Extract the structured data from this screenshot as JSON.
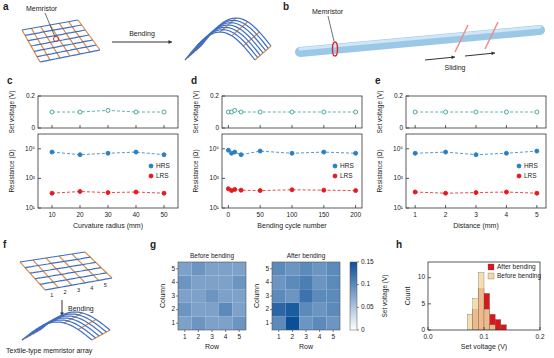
{
  "illustrations": [
    {
      "panel": "a",
      "labels": [
        "Memristor",
        "Bending"
      ]
    },
    {
      "panel": "b",
      "labels": [
        "Memristor",
        "Sliding"
      ]
    },
    {
      "panel": "f",
      "labels": [
        "Textile-type memristor array",
        "Bending"
      ],
      "numbers": [
        "1",
        "2",
        "3",
        "4",
        "5"
      ]
    }
  ],
  "chart_data": [
    {
      "panel": "c",
      "type": "line",
      "xlabel": "Curvature radius (mm)",
      "x": [
        10,
        20,
        30,
        40,
        50
      ],
      "xlim": [
        5,
        55
      ],
      "xticks": [
        10,
        20,
        30,
        40,
        50
      ],
      "subplots": [
        {
          "ylabel": "Set voltage (V)",
          "ylim": [
            0,
            0.2
          ],
          "yticks": [
            0,
            0.2
          ],
          "series": [
            {
              "color": "#3a9e9a",
              "marker": "open-circle",
              "line_style": "dashed",
              "values": [
                0.1,
                0.1,
                0.11,
                0.1,
                0.1
              ]
            }
          ]
        },
        {
          "ylabel": "Resistance (Ω)",
          "log": "y",
          "ylim": [
            10,
            1000000
          ],
          "yticks": [
            {
              "value": 10,
              "label": "10¹"
            },
            {
              "value": 1000,
              "label": "10³"
            },
            {
              "value": 100000,
              "label": "10⁵"
            }
          ],
          "legend": "right",
          "series": [
            {
              "name": "HRS",
              "color": "#2a7fc1",
              "marker": "circle",
              "line_style": "dashed",
              "values": [
                60000,
                40000,
                50000,
                60000,
                40000
              ]
            },
            {
              "name": "LRS",
              "color": "#e41a1c",
              "marker": "circle",
              "line_style": "dashed",
              "values": [
                100,
                130,
                110,
                120,
                100
              ]
            }
          ]
        }
      ]
    },
    {
      "panel": "d",
      "type": "line",
      "xlabel": "Bending cycle number",
      "x": [
        0,
        5,
        10,
        20,
        50,
        100,
        150,
        200
      ],
      "xlim": [
        -10,
        210
      ],
      "xticks": [
        0,
        50,
        100,
        150,
        200
      ],
      "subplots": [
        {
          "ylabel": "Set voltage (V)",
          "ylim": [
            0,
            0.2
          ],
          "yticks": [
            0,
            0.2
          ],
          "series": [
            {
              "color": "#3a9e9a",
              "marker": "open-circle",
              "line_style": "dashed",
              "values": [
                0.1,
                0.1,
                0.11,
                0.1,
                0.1,
                0.1,
                0.1,
                0.1
              ]
            }
          ]
        },
        {
          "ylabel": "Resistance (Ω)",
          "log": "y",
          "ylim": [
            10,
            1000000
          ],
          "yticks": [
            {
              "value": 10,
              "label": "10¹"
            },
            {
              "value": 1000,
              "label": "10³"
            },
            {
              "value": 100000,
              "label": "10⁵"
            }
          ],
          "legend": "right",
          "series": [
            {
              "name": "HRS",
              "color": "#2a7fc1",
              "marker": "circle",
              "line_style": "dashed",
              "values": [
                80000,
                50000,
                60000,
                40000,
                70000,
                50000,
                60000,
                50000
              ]
            },
            {
              "name": "LRS",
              "color": "#e41a1c",
              "marker": "circle",
              "line_style": "dashed",
              "values": [
                200,
                150,
                180,
                160,
                150,
                170,
                160,
                150
              ]
            }
          ]
        }
      ]
    },
    {
      "panel": "e",
      "type": "line",
      "xlabel": "Distance (mm)",
      "x": [
        1,
        2,
        3,
        4,
        5
      ],
      "xlim": [
        0.7,
        5.3
      ],
      "xticks": [
        1,
        2,
        3,
        4,
        5
      ],
      "subplots": [
        {
          "ylabel": "Set voltage (V)",
          "ylim": [
            0,
            0.2
          ],
          "yticks": [
            0,
            0.2
          ],
          "series": [
            {
              "color": "#3a9e9a",
              "marker": "open-circle",
              "line_style": "dashed",
              "values": [
                0.1,
                0.1,
                0.1,
                0.1,
                0.1
              ]
            }
          ]
        },
        {
          "ylabel": "Resistance (Ω)",
          "log": "y",
          "ylim": [
            10,
            1000000
          ],
          "yticks": [
            {
              "value": 10,
              "label": "10¹"
            },
            {
              "value": 1000,
              "label": "10³"
            },
            {
              "value": 100000,
              "label": "10⁵"
            }
          ],
          "legend": "right",
          "series": [
            {
              "name": "HRS",
              "color": "#2a7fc1",
              "marker": "circle",
              "line_style": "dashed",
              "values": [
                50000,
                60000,
                40000,
                50000,
                70000
              ]
            },
            {
              "name": "LRS",
              "color": "#e41a1c",
              "marker": "circle",
              "line_style": "dashed",
              "values": [
                120,
                100,
                110,
                120,
                100
              ]
            }
          ]
        }
      ]
    },
    {
      "panel": "g",
      "type": "heatmap",
      "xlabel": "Row",
      "ylabel": "Column",
      "xticks": [
        1,
        2,
        3,
        4,
        5
      ],
      "yticks": [
        1,
        2,
        3,
        4,
        5
      ],
      "panels": [
        {
          "title": "Before bending",
          "cells": [
            [
              0.08,
              0.09,
              0.08,
              0.08,
              0.09
            ],
            [
              0.09,
              0.08,
              0.08,
              0.1,
              0.08
            ],
            [
              0.08,
              0.08,
              0.09,
              0.08,
              0.08
            ],
            [
              0.09,
              0.08,
              0.08,
              0.08,
              0.09
            ],
            [
              0.08,
              0.09,
              0.08,
              0.08,
              0.08
            ]
          ]
        },
        {
          "title": "After bending",
          "cells": [
            [
              0.1,
              0.15,
              0.09,
              0.1,
              0.09
            ],
            [
              0.13,
              0.14,
              0.1,
              0.09,
              0.1
            ],
            [
              0.1,
              0.09,
              0.12,
              0.1,
              0.1
            ],
            [
              0.09,
              0.1,
              0.11,
              0.09,
              0.1
            ],
            [
              0.1,
              0.09,
              0.1,
              0.09,
              0.1
            ]
          ]
        }
      ],
      "colorbar": {
        "label": "Set voltage (V)",
        "range": [
          0,
          0.15
        ],
        "ticks": [
          0,
          0.05,
          0.1,
          0.15
        ]
      }
    },
    {
      "panel": "h",
      "type": "histogram",
      "xlabel": "Set voltage (V)",
      "ylabel": "Count",
      "bins": [
        0.07,
        0.08,
        0.09,
        0.1,
        0.11,
        0.12,
        0.13,
        0.14
      ],
      "series": [
        {
          "name": "After bending",
          "color": "#d7191c",
          "values": [
            0,
            4,
            8,
            7,
            3,
            2,
            1
          ]
        },
        {
          "name": "Before bending",
          "color": "#f2d7a0",
          "values": [
            3,
            6,
            11,
            4,
            1,
            0,
            0
          ]
        }
      ],
      "xlim": [
        0,
        0.2
      ],
      "xticks": [
        {
          "value": 0,
          "label": "0.0"
        },
        0.1,
        0.2
      ],
      "ylim": [
        0,
        13
      ],
      "yticks": [
        0,
        5,
        10
      ],
      "legend": "top-right"
    }
  ]
}
